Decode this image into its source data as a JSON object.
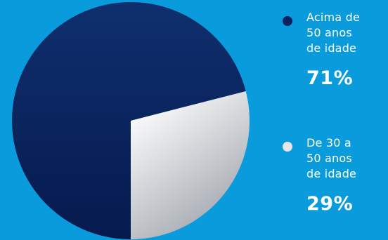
{
  "chart_data": {
    "type": "pie",
    "series": [
      {
        "name": "Acima de 50 anos de idade",
        "value": 71,
        "value_label": "71%",
        "color": "#0a2260"
      },
      {
        "name": "De 30 a 50 anos de idade",
        "value": 29,
        "value_label": "29%",
        "color": "#e3e6ec"
      }
    ]
  },
  "legend": [
    {
      "label": "Acima de\n50 anos\nde idade",
      "value": "71%",
      "color": "#0a2260"
    },
    {
      "label": "De 30 a\n50 anos\nde idade",
      "value": "29%",
      "color": "#e3e6ec"
    }
  ]
}
